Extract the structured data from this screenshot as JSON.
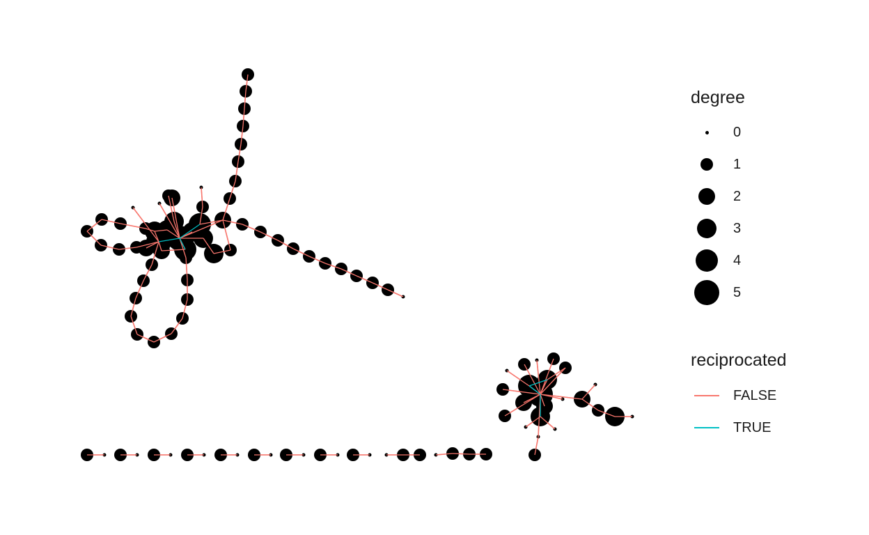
{
  "legend": {
    "degree": {
      "title": "degree",
      "items": [
        {
          "label": "0",
          "value": 0
        },
        {
          "label": "1",
          "value": 1
        },
        {
          "label": "2",
          "value": 2
        },
        {
          "label": "3",
          "value": 3
        },
        {
          "label": "4",
          "value": 4
        },
        {
          "label": "5",
          "value": 5
        }
      ]
    },
    "reciprocated": {
      "title": "reciprocated",
      "items": [
        {
          "label": "FALSE",
          "color": "#F8766D"
        },
        {
          "label": "TRUE",
          "color": "#00BFC4"
        }
      ]
    }
  },
  "colors": {
    "node": "#000000",
    "edge_false": "#F8766D",
    "edge_true": "#00BFC4",
    "background": "#ffffff"
  }
}
